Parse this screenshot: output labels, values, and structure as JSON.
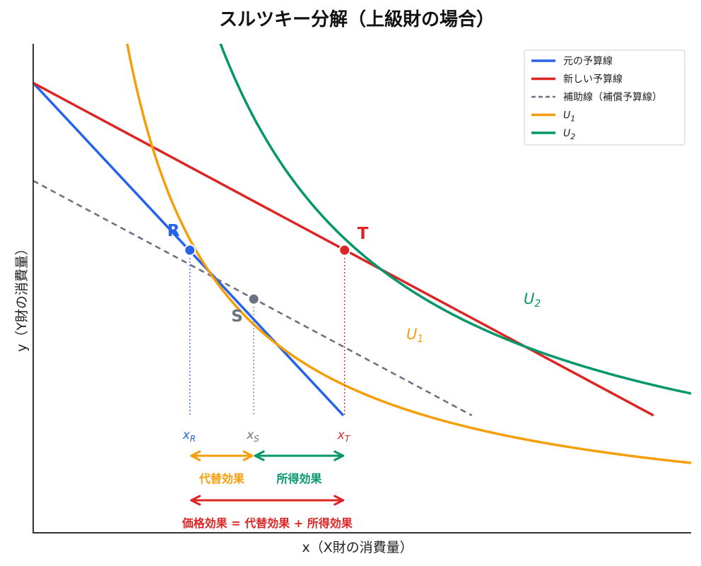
{
  "chart_data": {
    "type": "line",
    "title": "スルツキー分解（上級財の場合）",
    "xlabel": "x（X財の消費量）",
    "ylabel": "y（Y財の消費量）",
    "xlim": [
      0,
      10.5
    ],
    "ylim": [
      0,
      10
    ],
    "grid": false,
    "legend_position": "top-right",
    "colors": {
      "original": "#2563eb",
      "new": "#dc2626",
      "compensated": "#6b7280",
      "u1": "#f59e0b",
      "u2": "#059669"
    },
    "series": [
      {
        "key": "original",
        "name": "元の予算線",
        "style": "solid",
        "x": [
          0,
          4.95
        ],
        "y": [
          9.2,
          2.4
        ]
      },
      {
        "key": "new",
        "name": "新しい予算線",
        "style": "solid",
        "x": [
          0,
          9.9
        ],
        "y": [
          9.2,
          2.4
        ]
      },
      {
        "key": "compensated",
        "name": "補助線（補償予算線）",
        "style": "dashed",
        "x": [
          0,
          7.0
        ],
        "y": [
          7.2,
          2.4
        ]
      },
      {
        "key": "u1",
        "name": "U",
        "sub": "1",
        "style": "solid",
        "curve_k": 15.0,
        "x_range": [
          1.15,
          10.5
        ]
      },
      {
        "key": "u2",
        "name": "U",
        "sub": "2",
        "style": "solid",
        "curve_k": 29.9,
        "x_range": [
          2.27,
          10.5
        ]
      }
    ],
    "points": [
      {
        "key": "R",
        "label": "R",
        "x": 2.5,
        "y": 5.78,
        "color": "#2563eb",
        "tick_label": "x",
        "tick_sub": "R"
      },
      {
        "key": "S",
        "label": "S",
        "x": 3.52,
        "y": 4.78,
        "color": "#6b7280",
        "tick_label": "x",
        "tick_sub": "S"
      },
      {
        "key": "T",
        "label": "T",
        "x": 4.97,
        "y": 5.78,
        "color": "#dc2626",
        "tick_label": "x",
        "tick_sub": "T"
      }
    ],
    "curve_labels": [
      {
        "key": "u1",
        "text": "U",
        "sub": "1"
      },
      {
        "key": "u2",
        "text": "U",
        "sub": "2"
      }
    ],
    "effects": [
      {
        "key": "substitution",
        "label": "代替効果",
        "from": "R",
        "to": "S",
        "color": "#f59e0b",
        "row": 1
      },
      {
        "key": "income",
        "label": "所得効果",
        "from": "S",
        "to": "T",
        "color": "#059669",
        "row": 1
      },
      {
        "key": "price",
        "label": "価格効果 = 代替効果 + 所得効果",
        "from": "R",
        "to": "T",
        "color": "#dc2626",
        "row": 2
      }
    ]
  }
}
